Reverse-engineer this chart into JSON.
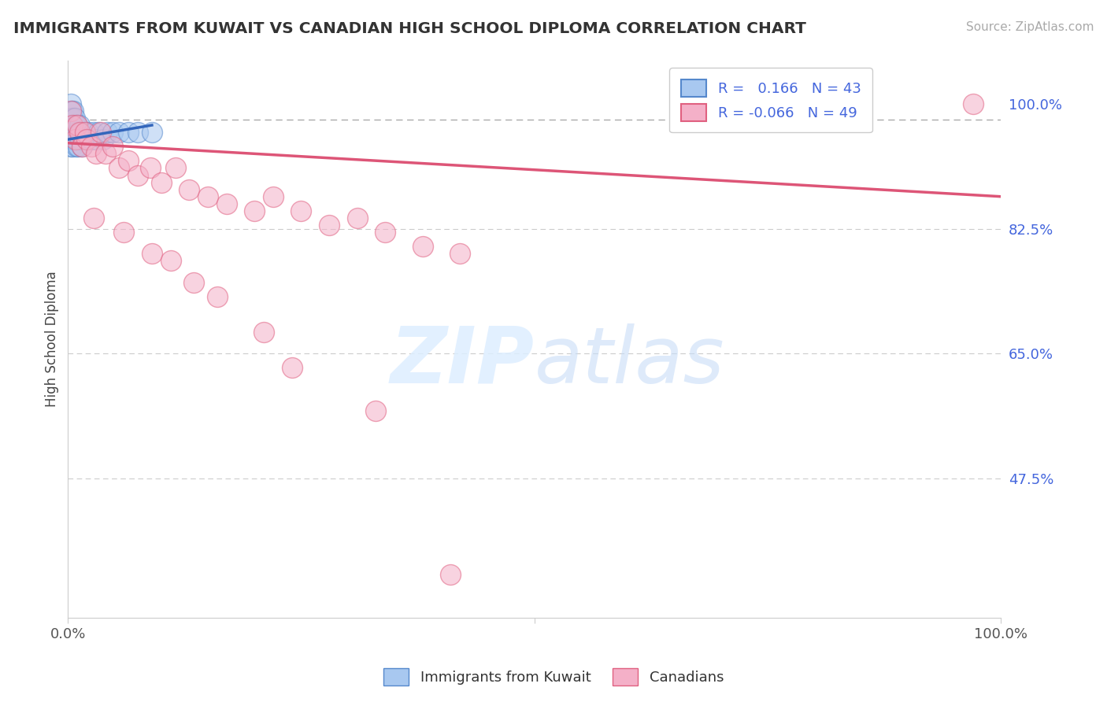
{
  "title": "IMMIGRANTS FROM KUWAIT VS CANADIAN HIGH SCHOOL DIPLOMA CORRELATION CHART",
  "source": "Source: ZipAtlas.com",
  "ylabel": "High School Diploma",
  "legend_label1": "Immigrants from Kuwait",
  "legend_label2": "Canadians",
  "r1": 0.166,
  "n1": 43,
  "r2": -0.066,
  "n2": 49,
  "color_blue": "#a8c8f0",
  "color_pink": "#f4b0c8",
  "color_blue_dark": "#5588cc",
  "color_pink_dark": "#e06080",
  "color_blue_line": "#3366bb",
  "color_pink_line": "#dd5577",
  "color_title": "#333333",
  "color_source": "#aaaaaa",
  "color_yticks": "#4466dd",
  "background": "#ffffff",
  "blue_dots_x": [
    0.003,
    0.003,
    0.003,
    0.003,
    0.003,
    0.004,
    0.004,
    0.004,
    0.005,
    0.005,
    0.005,
    0.006,
    0.006,
    0.006,
    0.007,
    0.007,
    0.008,
    0.008,
    0.009,
    0.009,
    0.009,
    0.01,
    0.01,
    0.011,
    0.011,
    0.012,
    0.013,
    0.014,
    0.015,
    0.018,
    0.02,
    0.022,
    0.025,
    0.028,
    0.03,
    0.033,
    0.038,
    0.042,
    0.048,
    0.055,
    0.065,
    0.075,
    0.09
  ],
  "blue_dots_y": [
    1.0,
    0.98,
    0.97,
    0.96,
    0.94,
    0.99,
    0.97,
    0.95,
    0.98,
    0.96,
    0.94,
    0.99,
    0.97,
    0.95,
    0.98,
    0.95,
    0.97,
    0.95,
    0.97,
    0.96,
    0.94,
    0.97,
    0.95,
    0.96,
    0.94,
    0.97,
    0.95,
    0.96,
    0.94,
    0.96,
    0.95,
    0.96,
    0.95,
    0.96,
    0.95,
    0.96,
    0.95,
    0.96,
    0.96,
    0.96,
    0.96,
    0.96,
    0.96
  ],
  "pink_dots_x": [
    0.003,
    0.005,
    0.008,
    0.01,
    0.012,
    0.015,
    0.018,
    0.02,
    0.025,
    0.03,
    0.035,
    0.04,
    0.048,
    0.055,
    0.065,
    0.075,
    0.088,
    0.1,
    0.115,
    0.13,
    0.15,
    0.17,
    0.2,
    0.22,
    0.25,
    0.28,
    0.31,
    0.34,
    0.38,
    0.42,
    0.97
  ],
  "pink_dots_y": [
    0.99,
    0.97,
    0.95,
    0.97,
    0.96,
    0.94,
    0.96,
    0.95,
    0.94,
    0.93,
    0.96,
    0.93,
    0.94,
    0.91,
    0.92,
    0.9,
    0.91,
    0.89,
    0.91,
    0.88,
    0.87,
    0.86,
    0.85,
    0.87,
    0.85,
    0.83,
    0.84,
    0.82,
    0.8,
    0.79,
    1.0
  ],
  "pink_outliers_x": [
    0.028,
    0.06,
    0.09,
    0.11,
    0.135,
    0.16,
    0.21,
    0.24,
    0.33,
    0.41
  ],
  "pink_outliers_y": [
    0.84,
    0.82,
    0.79,
    0.78,
    0.75,
    0.73,
    0.68,
    0.63,
    0.57,
    0.34
  ],
  "dashed_line_y": 0.978,
  "blue_line_x0": 0.0,
  "blue_line_x1": 0.09,
  "blue_line_y0": 0.95,
  "blue_line_y1": 0.97,
  "pink_line_x0": 0.0,
  "pink_line_x1": 1.0,
  "pink_line_y0": 0.945,
  "pink_line_y1": 0.87,
  "xmin": 0.0,
  "xmax": 1.0,
  "ymin": 0.28,
  "ymax": 1.06
}
